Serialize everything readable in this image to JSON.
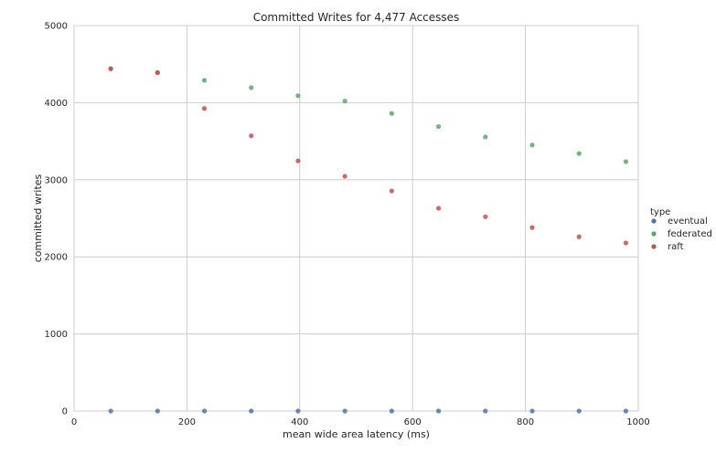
{
  "chart_data": {
    "type": "scatter",
    "title": "Committed Writes for 4,477 Accesses",
    "xlabel": "mean wide area latency (ms)",
    "ylabel": "committed writes",
    "xlim": [
      0,
      1000
    ],
    "ylim": [
      0,
      5000
    ],
    "xticks": [
      0,
      200,
      400,
      600,
      800,
      1000
    ],
    "yticks": [
      0,
      1000,
      2000,
      3000,
      4000,
      5000
    ],
    "grid": true,
    "legend": {
      "title": "type",
      "placement": "right"
    },
    "series": [
      {
        "name": "eventual",
        "color": "#4c72b0",
        "x": [
          65,
          148,
          231,
          314,
          397,
          480,
          563,
          646,
          729,
          812,
          895,
          978
        ],
        "y": [
          0,
          0,
          0,
          0,
          0,
          0,
          0,
          0,
          0,
          0,
          0,
          0
        ]
      },
      {
        "name": "federated",
        "color": "#55a868",
        "x": [
          65,
          148,
          231,
          314,
          397,
          480,
          563,
          646,
          729,
          812,
          895,
          978
        ],
        "y": [
          4440,
          4390,
          4290,
          4195,
          4090,
          4020,
          3860,
          3690,
          3555,
          3450,
          3340,
          3235
        ]
      },
      {
        "name": "raft",
        "color": "#c44e52",
        "x": [
          65,
          148,
          231,
          314,
          397,
          480,
          563,
          646,
          729,
          812,
          895,
          978
        ],
        "y": [
          4440,
          4390,
          3925,
          3570,
          3245,
          3045,
          2855,
          2630,
          2520,
          2380,
          2260,
          2180
        ]
      }
    ]
  }
}
